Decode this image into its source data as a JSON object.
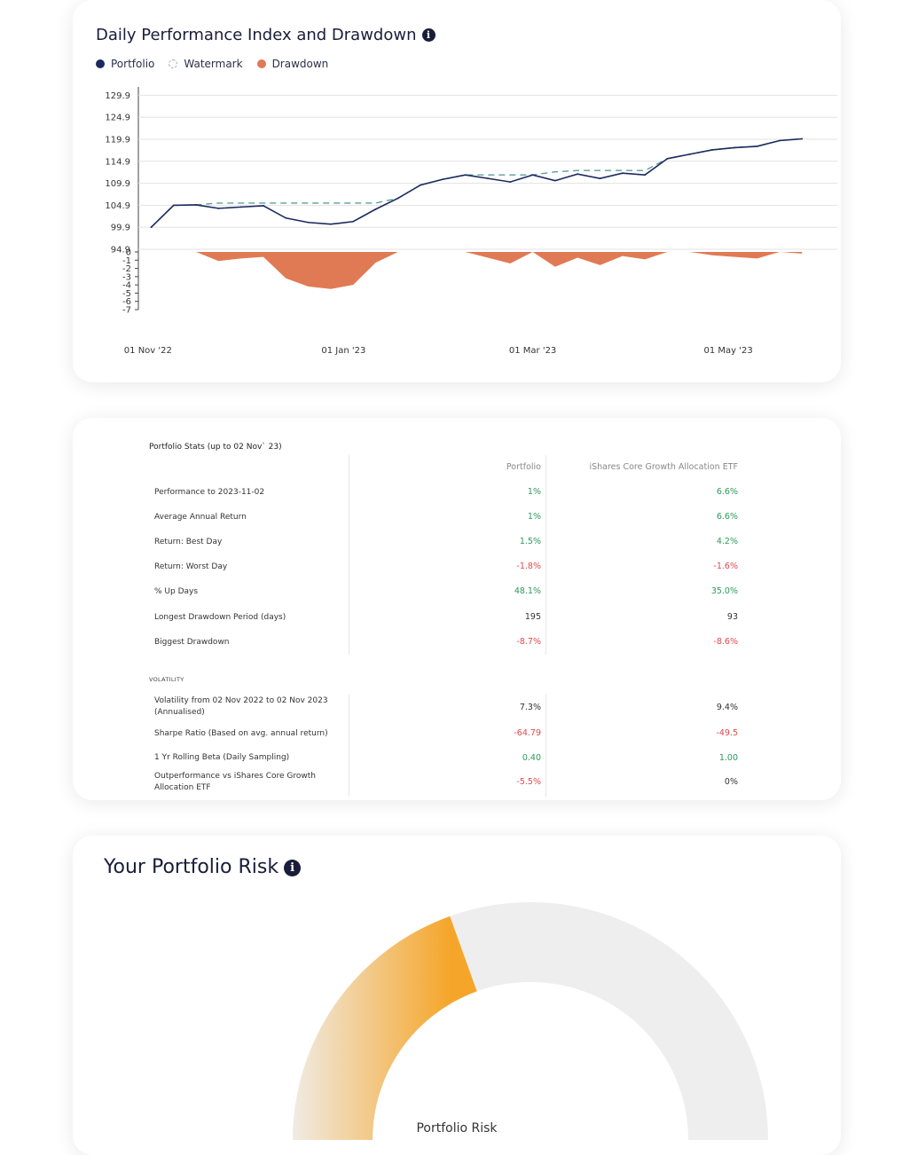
{
  "performance_card": {
    "title": "Daily Performance Index and Drawdown",
    "legend": [
      "Portfolio",
      "Watermark",
      "Drawdown"
    ],
    "colors": {
      "portfolio": "#1a2a5e",
      "watermark": "#5f9e9a",
      "drawdown": "#e07a55"
    }
  },
  "chart_data": {
    "type": "line",
    "y_ticks_index": [
      129.9,
      124.9,
      119.9,
      114.9,
      109.9,
      104.9,
      99.9,
      94.9
    ],
    "y_ticks_drawdown": [
      0,
      -1,
      -2,
      -3,
      -4,
      -5,
      -6,
      -7
    ],
    "x_ticks": [
      "01 Nov '22",
      "01 Jan '23",
      "01 Mar '23",
      "01 May '23"
    ],
    "x": [
      "2022-11-02",
      "2022-11-09",
      "2022-11-16",
      "2022-11-23",
      "2022-11-30",
      "2022-12-07",
      "2022-12-14",
      "2022-12-21",
      "2022-12-28",
      "2023-01-04",
      "2023-01-11",
      "2023-01-18",
      "2023-01-25",
      "2023-02-01",
      "2023-02-08",
      "2023-02-15",
      "2023-02-22",
      "2023-03-01",
      "2023-03-08",
      "2023-03-15",
      "2023-03-22",
      "2023-03-29",
      "2023-04-05",
      "2023-04-12",
      "2023-04-19",
      "2023-04-26",
      "2023-05-03",
      "2023-05-10",
      "2023-05-17",
      "2023-05-24"
    ],
    "series": [
      {
        "name": "Portfolio",
        "values": [
          99.9,
          104.9,
          105.0,
          104.2,
          104.5,
          104.8,
          102.0,
          101.0,
          100.6,
          101.2,
          104.0,
          106.5,
          109.5,
          110.8,
          111.8,
          111.0,
          110.2,
          111.8,
          110.5,
          112.0,
          111.0,
          112.2,
          111.8,
          115.5,
          116.5,
          117.5,
          118.0,
          118.3,
          119.6,
          120.0
        ]
      },
      {
        "name": "Watermark",
        "values": [
          99.9,
          104.9,
          105.0,
          105.4,
          105.4,
          105.4,
          105.4,
          105.4,
          105.4,
          105.4,
          105.4,
          106.5,
          109.5,
          110.8,
          111.8,
          111.8,
          111.8,
          111.8,
          112.5,
          112.8,
          112.8,
          112.8,
          112.8,
          115.5,
          116.5,
          117.5,
          118.0,
          118.3,
          119.6,
          120.0
        ]
      },
      {
        "name": "Drawdown",
        "values": [
          0,
          0,
          0,
          -1.1,
          -0.8,
          -0.6,
          -3.2,
          -4.2,
          -4.5,
          -4.0,
          -1.3,
          0,
          0,
          0,
          0,
          -0.7,
          -1.4,
          0,
          -1.8,
          -0.7,
          -1.6,
          -0.5,
          -0.9,
          0,
          0,
          -0.4,
          -0.6,
          -0.8,
          0,
          -0.2
        ]
      }
    ],
    "ylim_index": [
      94.9,
      132.4
    ],
    "ylim_drawdown": [
      -7,
      0
    ]
  },
  "stats_card": {
    "title": "Portfolio Stats (up to 02 Nov` 23)",
    "col_portfolio": "Portfolio",
    "col_benchmark": "iShares Core Growth Allocation ETF",
    "rows": [
      {
        "label": "Performance to 2023-11-02",
        "portfolio": "1%",
        "benchmark": "6.6%"
      },
      {
        "label": "Average Annual Return",
        "portfolio": "1%",
        "benchmark": "6.6%"
      },
      {
        "label": "Return: Best Day",
        "portfolio": "1.5%",
        "benchmark": "4.2%"
      },
      {
        "label": "Return: Worst Day",
        "portfolio": "-1.8%",
        "benchmark": "-1.6%"
      },
      {
        "label": "% Up Days",
        "portfolio": "48.1%",
        "benchmark": "35.0%"
      },
      {
        "label": "Longest Drawdown Period (days)",
        "portfolio": "195",
        "benchmark": "93"
      },
      {
        "label": "Biggest Drawdown",
        "portfolio": "-8.7%",
        "benchmark": "-8.6%"
      }
    ],
    "volatility_head": "VOLATILITY",
    "vol_rows": [
      {
        "label": "Volatility from 02 Nov 2022 to 02 Nov 2023 (Annualised)",
        "portfolio": "7.3%",
        "benchmark": "9.4%"
      },
      {
        "label": "Sharpe Ratio (Based on avg. annual return)",
        "portfolio": "-64.79",
        "benchmark": "-49.5"
      },
      {
        "label": "1 Yr Rolling Beta (Daily Sampling)",
        "portfolio": "0.40",
        "benchmark": "1.00"
      },
      {
        "label": "Outperformance vs iShares Core Growth Allocation ETF",
        "portfolio": "-5.5%",
        "benchmark": "0%"
      }
    ]
  },
  "risk_card": {
    "title": "Your Portfolio Risk",
    "center_label": "Portfolio Risk",
    "risk_fraction": 0.39,
    "colors": {
      "track": "#eeeeee",
      "fill_start": "#f0ebe4",
      "fill_end": "#f5a62a"
    }
  }
}
